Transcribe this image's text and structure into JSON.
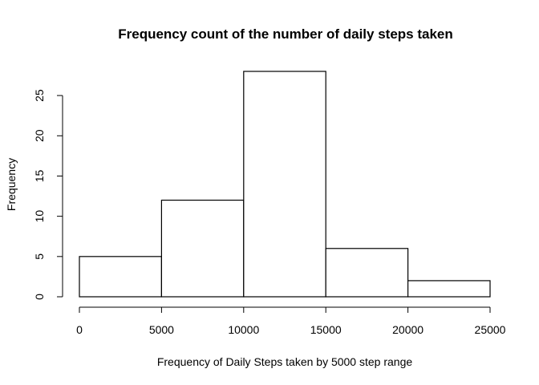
{
  "chart_data": {
    "type": "bar",
    "title": "Frequency count of the number of daily steps taken",
    "xlabel": "Frequency of Daily Steps taken by 5000 step range",
    "ylabel": "Frequency",
    "bins": [
      {
        "x0": 0,
        "x1": 5000,
        "value": 5
      },
      {
        "x0": 5000,
        "x1": 10000,
        "value": 12
      },
      {
        "x0": 10000,
        "x1": 15000,
        "value": 28
      },
      {
        "x0": 15000,
        "x1": 20000,
        "value": 6
      },
      {
        "x0": 20000,
        "x1": 25000,
        "value": 2
      }
    ],
    "xlim": [
      0,
      25000
    ],
    "ylim": [
      0,
      28
    ],
    "xticks": [
      0,
      5000,
      10000,
      15000,
      20000,
      25000
    ],
    "xtick_labels": [
      "0",
      "5000",
      "10000",
      "15000",
      "20000",
      "25000"
    ],
    "yticks": [
      0,
      5,
      10,
      15,
      20,
      25
    ],
    "ytick_labels": [
      "0",
      "5",
      "10",
      "15",
      "20",
      "25"
    ],
    "grid": false,
    "legend": "none"
  }
}
